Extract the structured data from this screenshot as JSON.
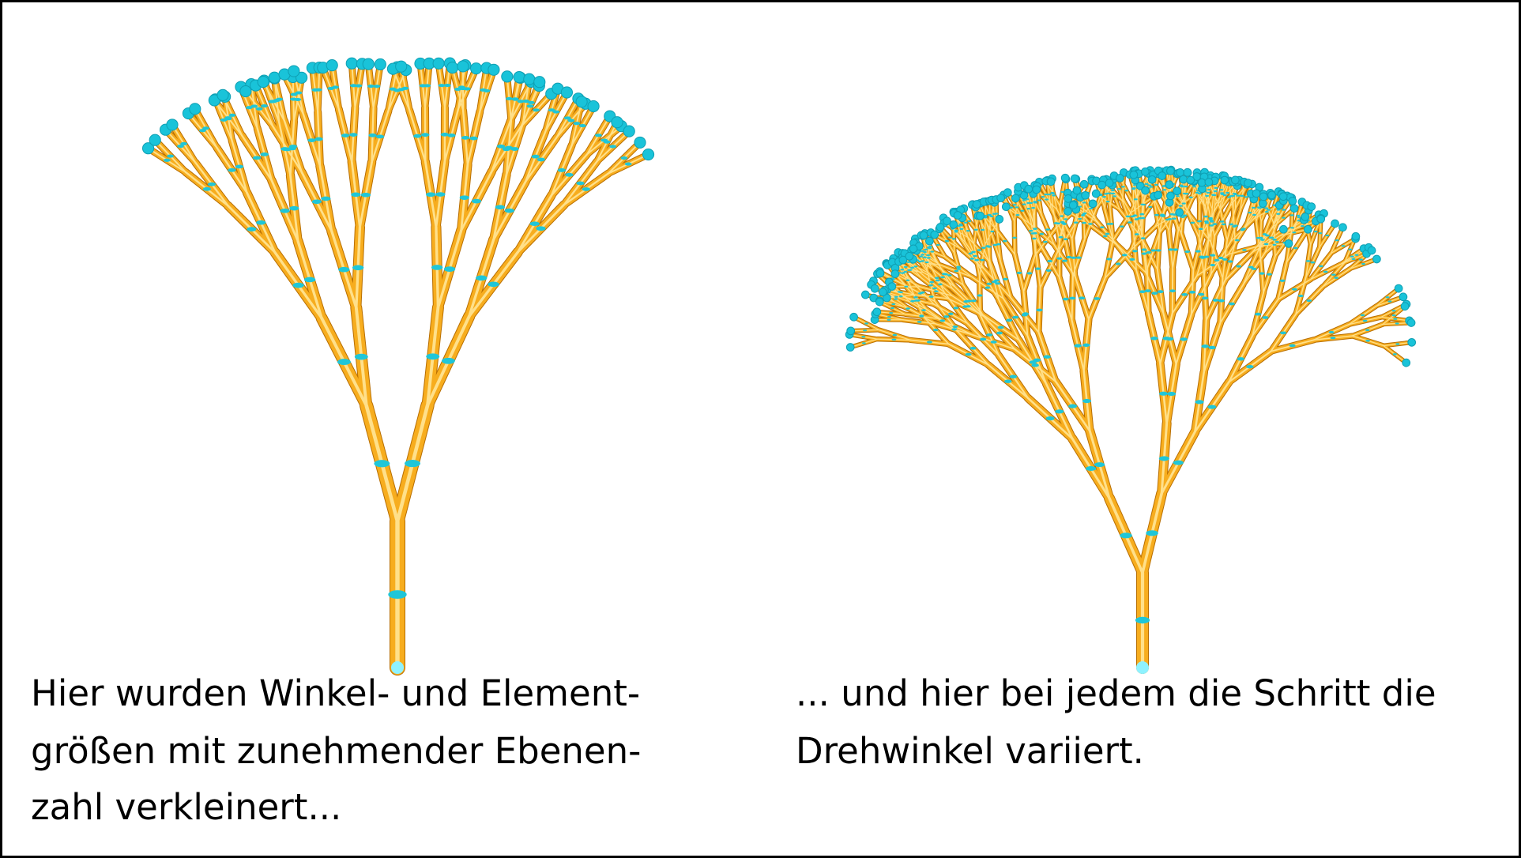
{
  "left_caption": {
    "lines": [
      "Hier wurden Winkel- und Element-",
      "größen mit zunehmender Ebenen-",
      "zahl verkleinert..."
    ]
  },
  "right_caption": {
    "lines": [
      "... und hier bei jedem die Schritt die",
      "Drehwinkel variiert."
    ]
  }
}
